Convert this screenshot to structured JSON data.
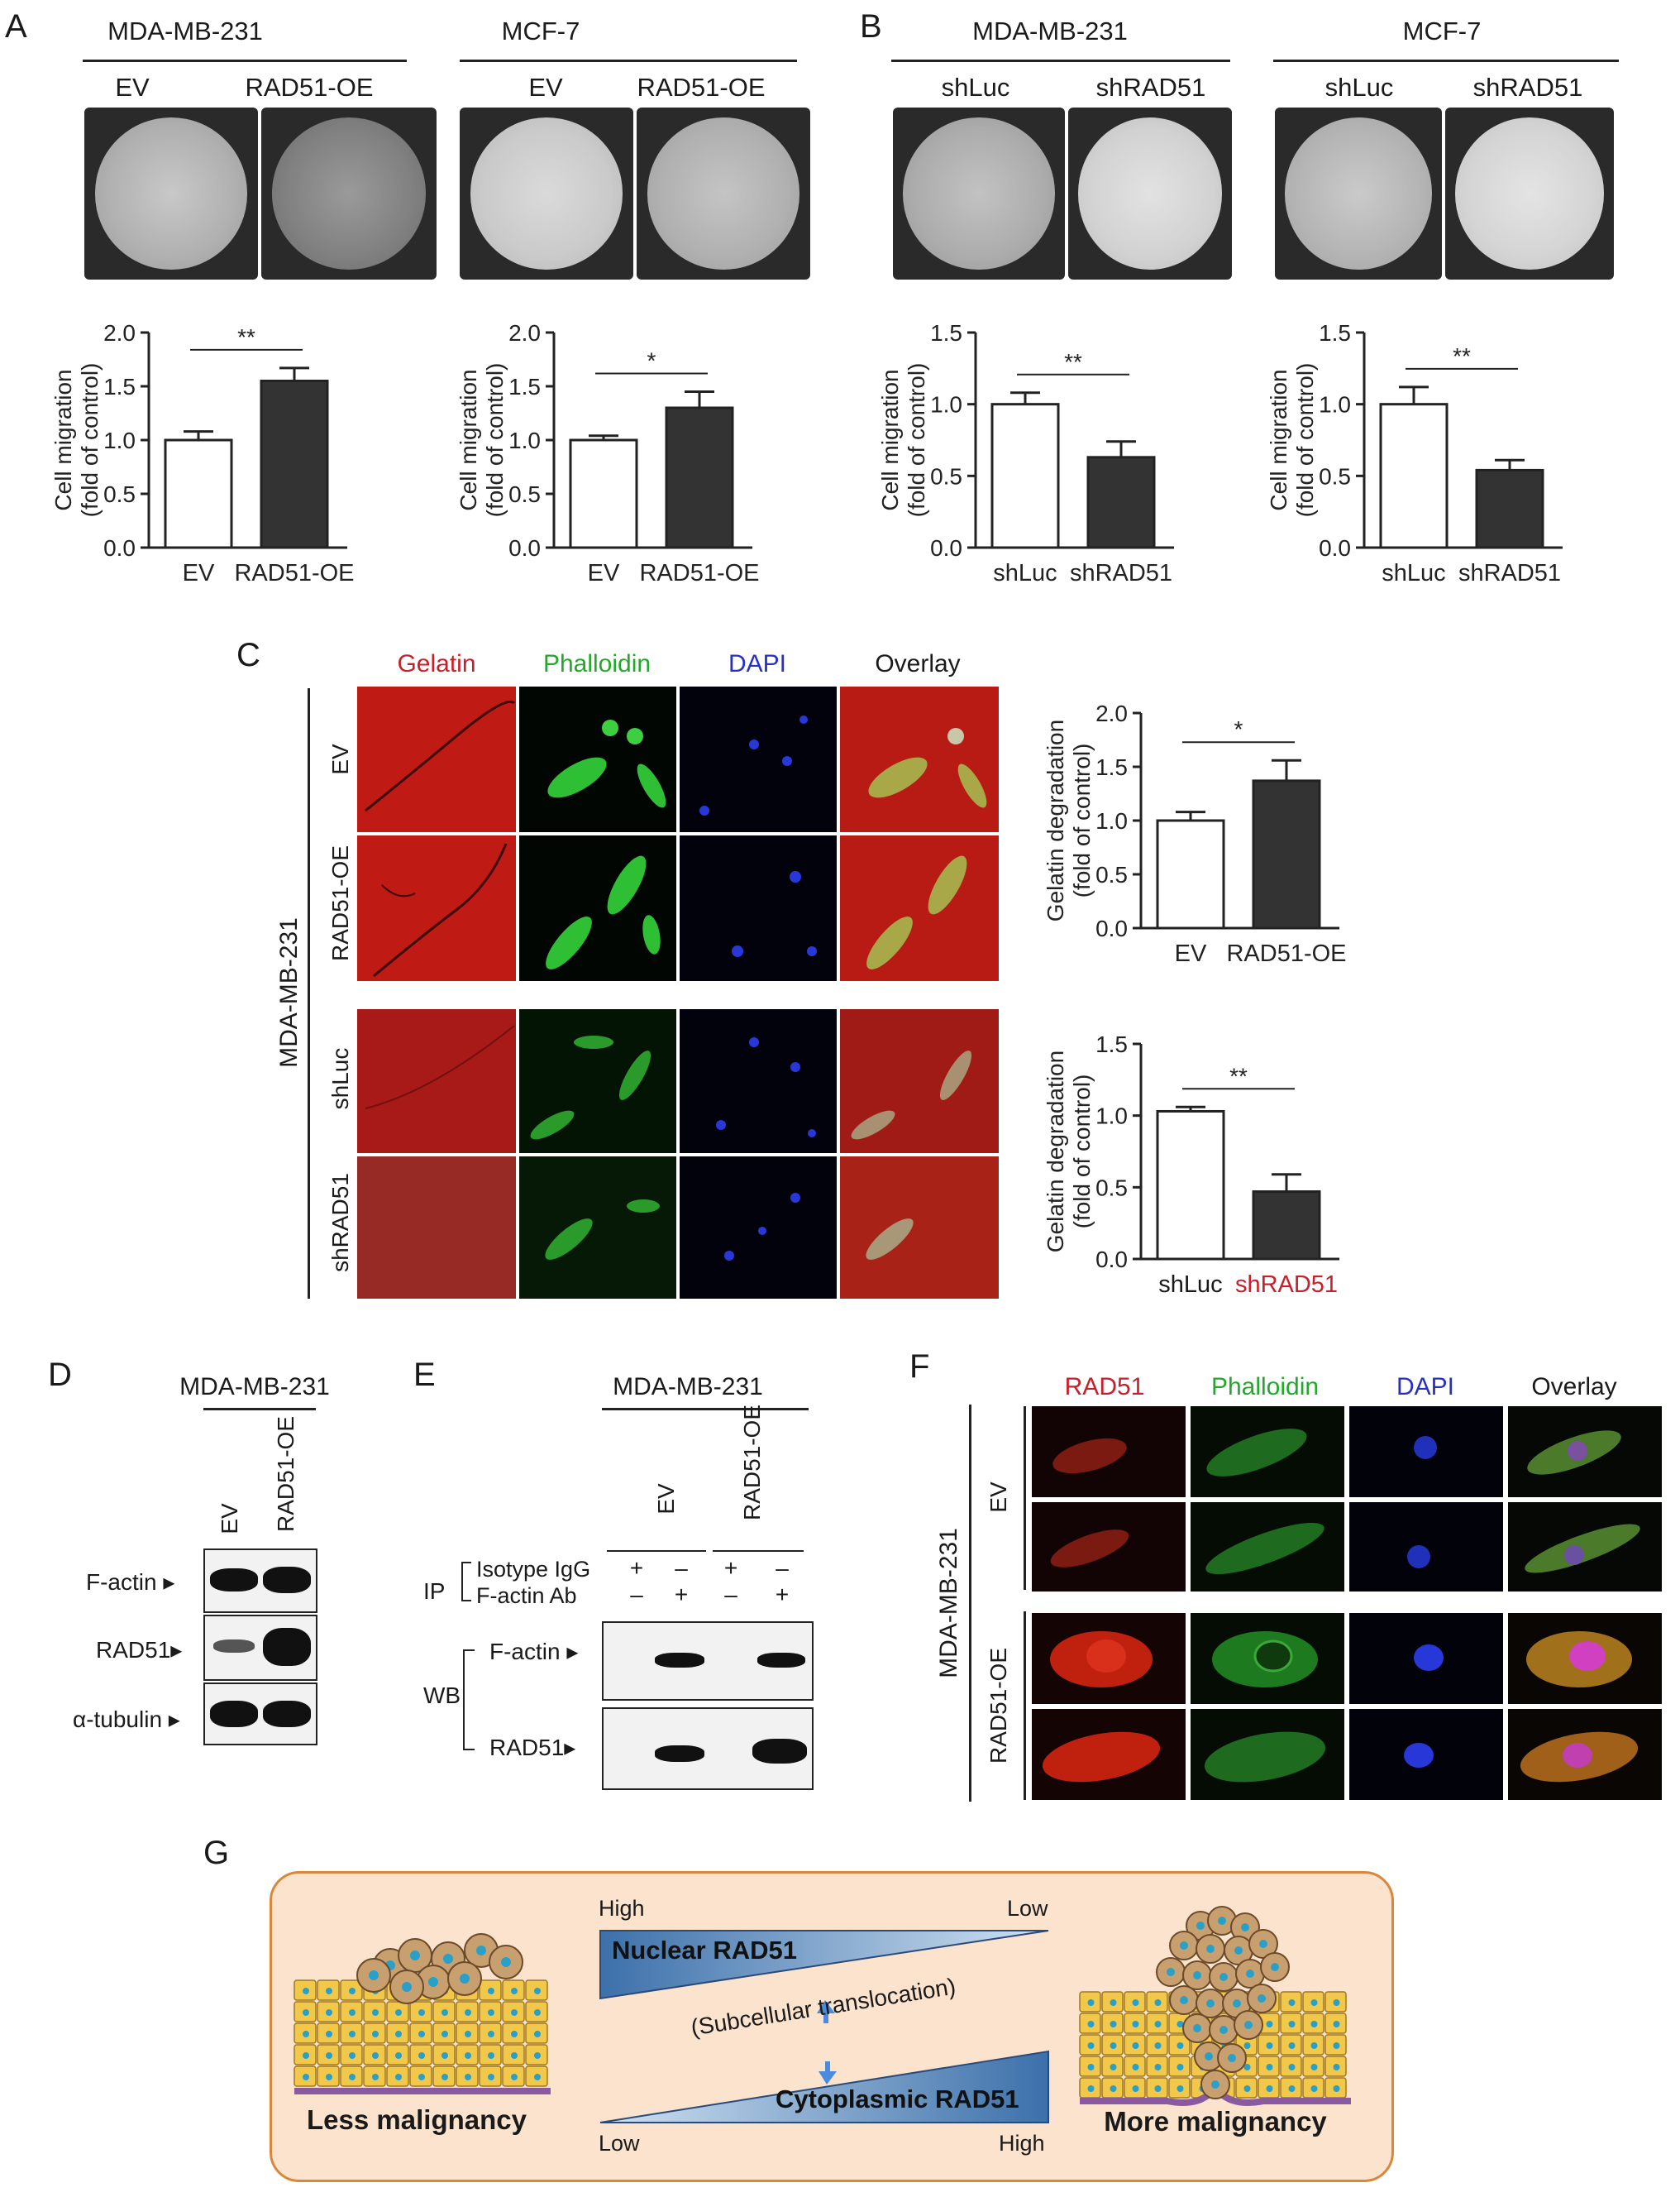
{
  "panels": {
    "A": {
      "letter": "A",
      "groups": [
        {
          "cell_line": "MDA-MB-231",
          "conditions": [
            "EV",
            "RAD51-OE"
          ]
        },
        {
          "cell_line": "MCF-7",
          "conditions": [
            "EV",
            "RAD51-OE"
          ]
        }
      ]
    },
    "B": {
      "letter": "B",
      "groups": [
        {
          "cell_line": "MDA-MB-231",
          "conditions": [
            "shLuc",
            "shRAD51"
          ]
        },
        {
          "cell_line": "MCF-7",
          "conditions": [
            "shLuc",
            "shRAD51"
          ]
        }
      ]
    },
    "C": {
      "letter": "C",
      "channels": [
        "Gelatin",
        "Phalloidin",
        "DAPI",
        "Overlay"
      ],
      "channel_colors": [
        "#c8202a",
        "#22a82a",
        "#2630c8",
        "#222222"
      ],
      "cell_line": "MDA-MB-231",
      "rows": [
        "EV",
        "RAD51-OE",
        "shLuc",
        "shRAD51"
      ]
    },
    "D": {
      "letter": "D",
      "cell_line": "MDA-MB-231",
      "lanes": [
        "EV",
        "RAD51-OE"
      ],
      "proteins": [
        "F-actin",
        "RAD51",
        "α-tubulin"
      ]
    },
    "E": {
      "letter": "E",
      "cell_line": "MDA-MB-231",
      "lanes": [
        "EV",
        "RAD51-OE"
      ],
      "ip_label": "IP",
      "ip_rows": [
        {
          "name": "Isotype IgG",
          "signs": [
            "+",
            "–",
            "+",
            "–"
          ]
        },
        {
          "name": "F-actin Ab",
          "signs": [
            "–",
            "+",
            "–",
            "+"
          ]
        }
      ],
      "wb_label": "WB",
      "wb_proteins": [
        "F-actin",
        "RAD51"
      ]
    },
    "F": {
      "letter": "F",
      "channels": [
        "RAD51",
        "Phalloidin",
        "DAPI",
        "Overlay"
      ],
      "channel_colors": [
        "#c8202a",
        "#22a82a",
        "#2630c8",
        "#222222"
      ],
      "cell_line": "MDA-MB-231",
      "rows": [
        "EV",
        "RAD51-OE"
      ]
    },
    "G": {
      "letter": "G",
      "high_left": "High",
      "low_right": "Low",
      "low_left": "Low",
      "high_right": "High",
      "nuclear": "Nuclear RAD51",
      "cytoplasmic": "Cytoplasmic RAD51",
      "translocation": "(Subcellular translocation)",
      "less": "Less malignancy",
      "more": "More malignancy"
    }
  },
  "chart_data": [
    {
      "type": "bar",
      "panel": "A",
      "categories": [
        "EV",
        "RAD51-OE"
      ],
      "values": [
        1.0,
        1.55
      ],
      "errors": [
        0.08,
        0.12
      ],
      "ylabel": "Cell migration\n(fold of control)",
      "ylim": [
        0,
        2.0
      ],
      "yticks": [
        "0.0",
        "0.5",
        "1.0",
        "1.5",
        "2.0"
      ],
      "significance": "**",
      "colors": [
        "#ffffff",
        "#333333"
      ]
    },
    {
      "type": "bar",
      "panel": "A",
      "categories": [
        "EV",
        "RAD51-OE"
      ],
      "values": [
        1.0,
        1.3
      ],
      "errors": [
        0.04,
        0.15
      ],
      "ylabel": "Cell migration\n(fold of control)",
      "ylim": [
        0,
        2.0
      ],
      "yticks": [
        "0.0",
        "0.5",
        "1.0",
        "1.5",
        "2.0"
      ],
      "significance": "*",
      "colors": [
        "#ffffff",
        "#333333"
      ]
    },
    {
      "type": "bar",
      "panel": "B",
      "categories": [
        "shLuc",
        "shRAD51"
      ],
      "values": [
        1.0,
        0.63
      ],
      "errors": [
        0.08,
        0.11
      ],
      "ylabel": "Cell migration\n(fold of control)",
      "ylim": [
        0,
        1.5
      ],
      "yticks": [
        "0.0",
        "0.5",
        "1.0",
        "1.5"
      ],
      "significance": "**",
      "colors": [
        "#ffffff",
        "#333333"
      ]
    },
    {
      "type": "bar",
      "panel": "B",
      "categories": [
        "shLuc",
        "shRAD51"
      ],
      "values": [
        1.0,
        0.54
      ],
      "errors": [
        0.12,
        0.07
      ],
      "ylabel": "Cell migration\n(fold of control)",
      "ylim": [
        0,
        1.5
      ],
      "yticks": [
        "0.0",
        "0.5",
        "1.0",
        "1.5"
      ],
      "significance": "**",
      "colors": [
        "#ffffff",
        "#333333"
      ]
    },
    {
      "type": "bar",
      "panel": "C",
      "categories": [
        "EV",
        "RAD51-OE"
      ],
      "values": [
        1.0,
        1.37
      ],
      "errors": [
        0.08,
        0.19
      ],
      "ylabel": "Gelatin degradation\n(fold of control)",
      "ylim": [
        0,
        2.0
      ],
      "yticks": [
        "0.0",
        "0.5",
        "1.0",
        "1.5",
        "2.0"
      ],
      "significance": "*",
      "colors": [
        "#ffffff",
        "#333333"
      ]
    },
    {
      "type": "bar",
      "panel": "C",
      "categories": [
        "shLuc",
        "shRAD51"
      ],
      "values": [
        1.03,
        0.47
      ],
      "errors": [
        0.03,
        0.12
      ],
      "ylabel": "Gelatin degradation\n(fold of control)",
      "ylim": [
        0,
        1.5
      ],
      "yticks": [
        "0.0",
        "0.5",
        "1.0",
        "1.5"
      ],
      "significance": "**",
      "colors": [
        "#ffffff",
        "#333333"
      ],
      "category_colors": [
        "#1a1a1a",
        "#c8202a"
      ]
    }
  ]
}
